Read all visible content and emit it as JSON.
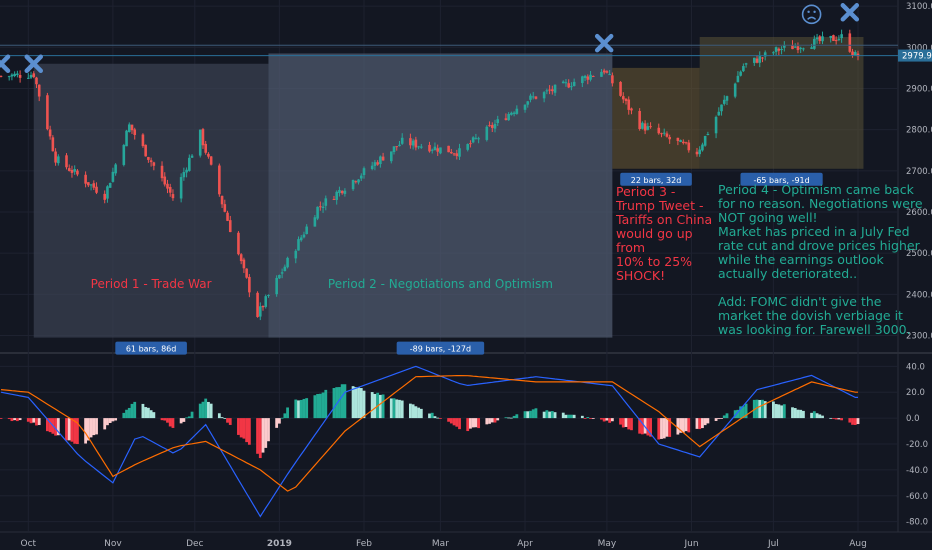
{
  "chart_data": [
    {
      "type": "candlestick",
      "title": "",
      "x_ticks": [
        "Oct",
        "Nov",
        "Dec",
        "2019",
        "Feb",
        "Mar",
        "Apr",
        "May",
        "Jun",
        "Jul",
        "Aug"
      ],
      "y_ticks": [
        2300.0,
        2400.0,
        2500.0,
        2600.0,
        2700.0,
        2800.0,
        2900.0,
        3000.0,
        3100.0
      ],
      "ylim": [
        2260,
        3110
      ],
      "last_price_label": "2979.9",
      "approx_path": [
        {
          "date": "2018-09-21",
          "close": 2930
        },
        {
          "date": "2018-10-03",
          "close": 2935
        },
        {
          "date": "2018-10-11",
          "close": 2730
        },
        {
          "date": "2018-10-29",
          "close": 2640
        },
        {
          "date": "2018-11-07",
          "close": 2810
        },
        {
          "date": "2018-11-23",
          "close": 2635
        },
        {
          "date": "2018-12-03",
          "close": 2790
        },
        {
          "date": "2018-12-24",
          "close": 2350
        },
        {
          "date": "2019-01-15",
          "close": 2610
        },
        {
          "date": "2019-02-15",
          "close": 2770
        },
        {
          "date": "2019-03-08",
          "close": 2745
        },
        {
          "date": "2019-04-01",
          "close": 2870
        },
        {
          "date": "2019-04-30",
          "close": 2945
        },
        {
          "date": "2019-05-13",
          "close": 2812
        },
        {
          "date": "2019-06-03",
          "close": 2745
        },
        {
          "date": "2019-06-20",
          "close": 2955
        },
        {
          "date": "2019-07-03",
          "close": 2995
        },
        {
          "date": "2019-07-26",
          "close": 3025
        },
        {
          "date": "2019-07-31",
          "close": 2980
        }
      ],
      "markers": [
        {
          "type": "x",
          "date": "2018-09-21",
          "price": 2960
        },
        {
          "type": "x",
          "date": "2018-10-03",
          "price": 2960
        },
        {
          "type": "x",
          "date": "2019-04-30",
          "price": 3010
        },
        {
          "type": "sad-face",
          "date": "2019-07-15",
          "price": 3080
        },
        {
          "type": "x",
          "date": "2019-07-29",
          "price": 3085
        }
      ],
      "periods": [
        {
          "label": "Period 1 - Trade War",
          "start": "2018-10-03",
          "end": "2018-12-28",
          "measure": "61 bars, 86d",
          "color": "#f23645"
        },
        {
          "label": "Period 2 - Negotiations and Optimism",
          "start": "2018-12-28",
          "end": "2019-05-03",
          "measure": "-89 bars, -127d",
          "color": "#22ab94"
        },
        {
          "label": "",
          "start": "2019-05-03",
          "end": "2019-06-04",
          "measure": "22 bars, 32d"
        },
        {
          "label": "",
          "start": "2019-06-04",
          "end": "2019-08-03",
          "measure": "-65 bars, -91d"
        }
      ]
    },
    {
      "type": "macd",
      "y_ticks": [
        40.0,
        20.0,
        0.0,
        -20.0,
        -40.0,
        -60.0,
        -80.0
      ],
      "ylim": [
        -88,
        48
      ],
      "approx_path": [
        {
          "date": "2018-09-21",
          "histogram": -1,
          "macd": 20,
          "signal": 22
        },
        {
          "date": "2018-10-01",
          "histogram": -2,
          "macd": 16,
          "signal": 20
        },
        {
          "date": "2018-10-20",
          "histogram": -22,
          "macd": -30,
          "signal": -5
        },
        {
          "date": "2018-11-01",
          "histogram": -3,
          "macd": -50,
          "signal": -45
        },
        {
          "date": "2018-11-10",
          "histogram": 14,
          "macd": -12,
          "signal": -35
        },
        {
          "date": "2018-11-24",
          "histogram": -9,
          "macd": -28,
          "signal": -22
        },
        {
          "date": "2018-12-05",
          "histogram": 15,
          "macd": -5,
          "signal": -18
        },
        {
          "date": "2018-12-25",
          "histogram": -30,
          "macd": -76,
          "signal": -40
        },
        {
          "date": "2019-01-05",
          "histogram": 12,
          "macd": -40,
          "signal": -58
        },
        {
          "date": "2019-01-25",
          "histogram": 26,
          "macd": 20,
          "signal": -10
        },
        {
          "date": "2019-02-20",
          "histogram": 10,
          "macd": 40,
          "signal": 32
        },
        {
          "date": "2019-03-10",
          "histogram": -10,
          "macd": 25,
          "signal": 33
        },
        {
          "date": "2019-04-05",
          "histogram": 7,
          "macd": 32,
          "signal": 28
        },
        {
          "date": "2019-05-03",
          "histogram": -3,
          "macd": 25,
          "signal": 28
        },
        {
          "date": "2019-05-20",
          "histogram": -17,
          "macd": -20,
          "signal": 5
        },
        {
          "date": "2019-06-04",
          "histogram": -8,
          "macd": -30,
          "signal": -22
        },
        {
          "date": "2019-06-25",
          "histogram": 15,
          "macd": 22,
          "signal": 8
        },
        {
          "date": "2019-07-15",
          "histogram": 5,
          "macd": 33,
          "signal": 28
        },
        {
          "date": "2019-07-31",
          "histogram": -5,
          "macd": 16,
          "signal": 20
        }
      ],
      "colors": {
        "hist_up": "#22ab94",
        "hist_up_weak": "#ace5dc",
        "hist_down": "#f23645",
        "hist_down_weak": "#fccbcd",
        "macd": "#2962ff",
        "signal": "#ff6d00"
      }
    }
  ],
  "annotations": {
    "period3": "Period 3 -\nTrump Tweet -\nTariffs on China\nwould go up from\n10% to 25%\nSHOCK!",
    "period4": "Period 4 - Optimism came back\nfor no reason. Negotiations were\nNOT going well!\nMarket has priced in a July Fed\nrate cut and drove prices higher\nwhile the earnings outlook\nactually deteriorated..\n\nAdd: FOMC didn't give the\nmarket the dovish verbiage it\nwas looking for. Farewell 3000."
  },
  "colors": {
    "background": "#131722",
    "up": "#26a69a",
    "down": "#ef5350",
    "period1_fill": "#3a4050",
    "period2_fill": "#4f5a6e",
    "period3_fill": "#6b5a33",
    "period4_fill": "#5a5236",
    "measure_label": "#2a5faa",
    "marker": "#5b8fd0"
  }
}
